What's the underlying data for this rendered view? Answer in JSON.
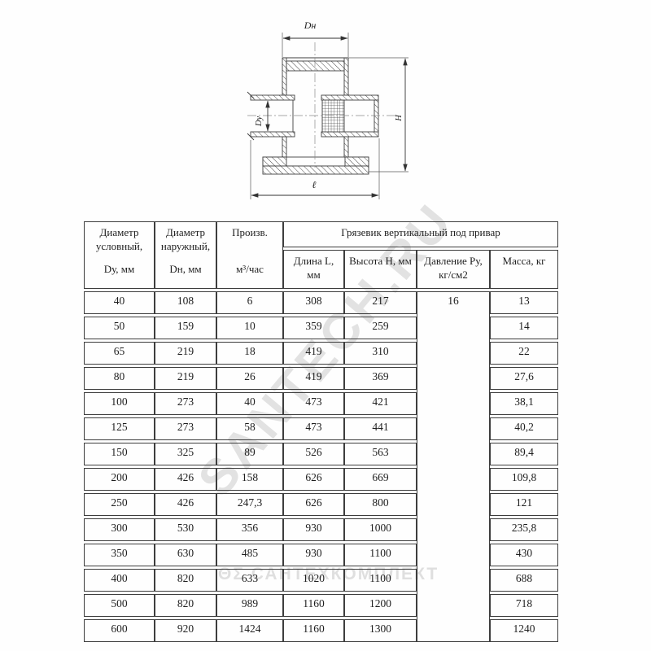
{
  "drawing": {
    "labels": {
      "outer_diameter": "Dн",
      "nominal_diameter": "Dу",
      "height": "H",
      "length": "ℓ"
    }
  },
  "watermarks": {
    "diagonal": "SANTECH.RU",
    "horizontal": "ΘΣ САНТЕХКОМПЛЕКТ"
  },
  "table": {
    "col_headers": [
      {
        "lines": [
          "Диаметр",
          "условный,",
          "Dу, мм"
        ]
      },
      {
        "lines": [
          "Диаметр",
          "наружный,",
          "Dн, мм"
        ]
      },
      {
        "lines": [
          "Произв.",
          "м³/час"
        ]
      }
    ],
    "group_header": "Грязевик вертикальный под привар",
    "sub_headers": [
      {
        "lines": [
          "Длина L,",
          "мм"
        ]
      },
      {
        "lines": [
          "Высота Н, мм",
          ""
        ]
      },
      {
        "lines": [
          "Давление Ру,",
          "кг/см2"
        ]
      },
      {
        "lines": [
          "Масса, кг",
          ""
        ]
      }
    ],
    "pressure_value": "16",
    "rows": [
      {
        "dy": "40",
        "dn": "108",
        "flow": "6",
        "length": "308",
        "height": "217",
        "mass": "13"
      },
      {
        "dy": "50",
        "dn": "159",
        "flow": "10",
        "length": "359",
        "height": "259",
        "mass": "14"
      },
      {
        "dy": "65",
        "dn": "219",
        "flow": "18",
        "length": "419",
        "height": "310",
        "mass": "22"
      },
      {
        "dy": "80",
        "dn": "219",
        "flow": "26",
        "length": "419",
        "height": "369",
        "mass": "27,6"
      },
      {
        "dy": "100",
        "dn": "273",
        "flow": "40",
        "length": "473",
        "height": "421",
        "mass": "38,1"
      },
      {
        "dy": "125",
        "dn": "273",
        "flow": "58",
        "length": "473",
        "height": "441",
        "mass": "40,2"
      },
      {
        "dy": "150",
        "dn": "325",
        "flow": "89",
        "length": "526",
        "height": "563",
        "mass": "89,4"
      },
      {
        "dy": "200",
        "dn": "426",
        "flow": "158",
        "length": "626",
        "height": "669",
        "mass": "109,8"
      },
      {
        "dy": "250",
        "dn": "426",
        "flow": "247,3",
        "length": "626",
        "height": "800",
        "mass": "121"
      },
      {
        "dy": "300",
        "dn": "530",
        "flow": "356",
        "length": "930",
        "height": "1000",
        "mass": "235,8"
      },
      {
        "dy": "350",
        "dn": "630",
        "flow": "485",
        "length": "930",
        "height": "1100",
        "mass": "430"
      },
      {
        "dy": "400",
        "dn": "820",
        "flow": "633",
        "length": "1020",
        "height": "1100",
        "mass": "688"
      },
      {
        "dy": "500",
        "dn": "820",
        "flow": "989",
        "length": "1160",
        "height": "1200",
        "mass": "718"
      },
      {
        "dy": "600",
        "dn": "920",
        "flow": "1424",
        "length": "1160",
        "height": "1300",
        "mass": "1240"
      }
    ]
  }
}
